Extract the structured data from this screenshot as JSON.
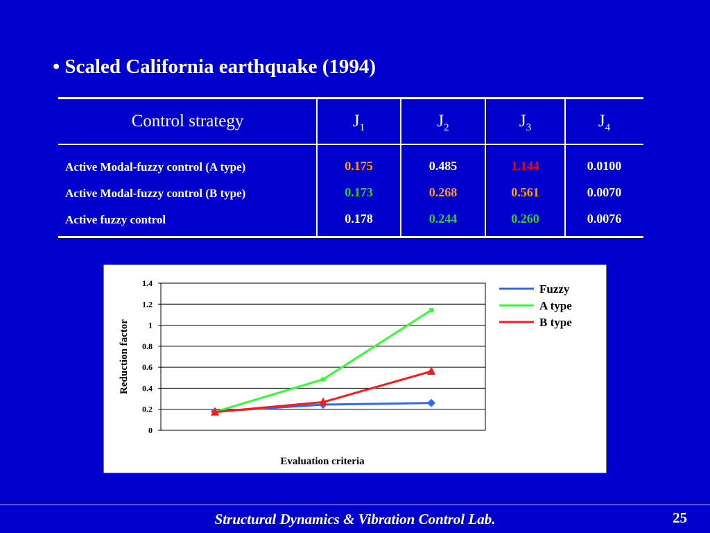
{
  "bullet": "Scaled California earthquake (1994)",
  "table": {
    "header": {
      "strategy": "Control strategy",
      "criteria": [
        {
          "letter": "J",
          "sub": "1"
        },
        {
          "letter": "J",
          "sub": "2"
        },
        {
          "letter": "J",
          "sub": "3"
        },
        {
          "letter": "J",
          "sub": "4"
        }
      ]
    },
    "rows": [
      {
        "strategy": "Active Modal-fuzzy control (A type)",
        "cells": [
          {
            "text": "0.175",
            "color": "#ff9933"
          },
          {
            "text": "0.485",
            "color": "#ffffff"
          },
          {
            "text": "1.144",
            "color": "#ff0000"
          },
          {
            "text": "0.0100",
            "color": "#ffffff"
          }
        ]
      },
      {
        "strategy": "Active Modal-fuzzy control (B type)",
        "cells": [
          {
            "text": "0.173",
            "color": "#33cc33"
          },
          {
            "text": "0.268",
            "color": "#ff9933"
          },
          {
            "text": "0.561",
            "color": "#ff9933"
          },
          {
            "text": "0.0070",
            "color": "#ffffff"
          }
        ]
      },
      {
        "strategy": "Active fuzzy control",
        "cells": [
          {
            "text": "0.178",
            "color": "#ffffff"
          },
          {
            "text": "0.244",
            "color": "#33cc33"
          },
          {
            "text": "0.260",
            "color": "#33cc33"
          },
          {
            "text": "0.0076",
            "color": "#ffffff"
          }
        ]
      }
    ]
  },
  "chart_data": {
    "type": "line",
    "xlabel": "Evaluation criteria",
    "ylabel": "Reduction factor",
    "categories": [
      null,
      null,
      null
    ],
    "series": [
      {
        "name": "Fuzzy",
        "color": "#3366ff",
        "marker": "diamond",
        "values": [
          0.178,
          0.244,
          0.26
        ]
      },
      {
        "name": "A type",
        "color": "#33ff33",
        "marker": "square",
        "values": [
          0.175,
          0.485,
          1.144
        ]
      },
      {
        "name": "B type",
        "color": "#ff1a1a",
        "marker": "triangle",
        "values": [
          0.173,
          0.268,
          0.561
        ]
      }
    ],
    "ylim": [
      0,
      1.4
    ],
    "yticks": [
      0,
      0.2,
      0.4,
      0.6,
      0.8,
      1,
      1.2,
      1.4
    ],
    "grid": true,
    "legend": "right"
  },
  "footer": "Structural Dynamics & Vibration Control Lab.",
  "page_number": "25"
}
